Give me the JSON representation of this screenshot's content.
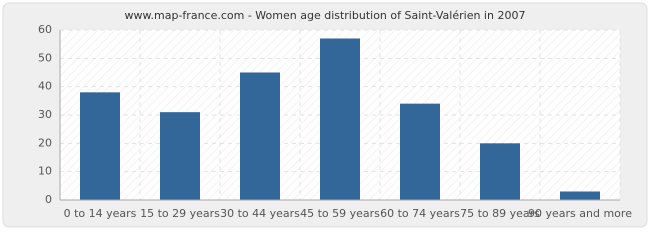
{
  "chart_data": {
    "type": "bar",
    "title": "www.map-france.com - Women age distribution of Saint-Valérien in 2007",
    "categories": [
      "0 to 14 years",
      "15 to 29 years",
      "30 to 44 years",
      "45 to 59 years",
      "60 to 74 years",
      "75 to 89 years",
      "90 years and more"
    ],
    "values": [
      38,
      31,
      45,
      57,
      34,
      20,
      3
    ],
    "color": "#336699",
    "ylim": [
      0,
      60
    ],
    "yticks": [
      0,
      10,
      20,
      30,
      40,
      50,
      60
    ],
    "grid": true
  }
}
